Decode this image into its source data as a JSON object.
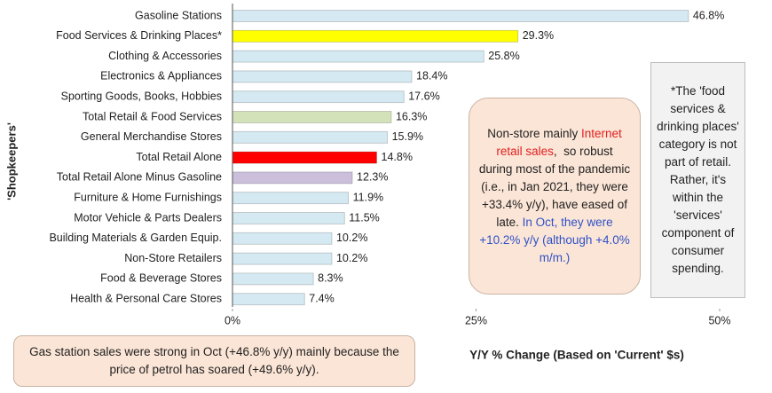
{
  "chart_data": {
    "type": "bar",
    "orientation": "horizontal",
    "categories": [
      "Gasoline Stations",
      "Food Services & Drinking Places*",
      "Clothing & Accessories",
      "Electronics & Appliances",
      "Sporting Goods, Books, Hobbies",
      "Total Retail & Food Services",
      "General Merchandise Stores",
      "Total Retail Alone",
      "Total Retail Alone Minus Gasoline",
      "Furniture & Home Furnishings",
      "Motor Vehicle & Parts Dealers",
      "Building Materials & Garden Equip.",
      "Non-Store Retailers",
      "Food & Beverage Stores",
      "Health & Personal Care Stores"
    ],
    "values": [
      46.8,
      29.3,
      25.8,
      18.4,
      17.6,
      16.3,
      15.9,
      14.8,
      12.3,
      11.9,
      11.5,
      10.2,
      10.2,
      8.3,
      7.4
    ],
    "value_labels": [
      "46.8%",
      "29.3%",
      "25.8%",
      "18.4%",
      "17.6%",
      "16.3%",
      "15.9%",
      "14.8%",
      "12.3%",
      "11.9%",
      "11.5%",
      "10.2%",
      "10.2%",
      "8.3%",
      "7.4%"
    ],
    "colors": [
      "#d5e9f2",
      "#ffff00",
      "#d5e9f2",
      "#d5e9f2",
      "#d5e9f2",
      "#d3e2b9",
      "#d5e9f2",
      "#ff0000",
      "#cbbfdc",
      "#d5e9f2",
      "#d5e9f2",
      "#d5e9f2",
      "#d5e9f2",
      "#d5e9f2",
      "#d5e9f2"
    ],
    "xlim": [
      0,
      50
    ],
    "xticks": [
      {
        "value": 0,
        "label": "0%"
      },
      {
        "value": 25,
        "label": "25%"
      },
      {
        "value": 50,
        "label": "50%"
      }
    ],
    "xlabel": "Y/Y % Change (Based  on 'Current' $s)",
    "ylabel": "'Shopkeepers'",
    "annotations": [
      {
        "segments": [
          {
            "text": "Non-store mainly ",
            "color": "#222222"
          },
          {
            "text": "Internet retail sales",
            "color": "#e02020"
          },
          {
            "text": ",  so robust during most of the pandemic (i.e., in Jan 2021, they were +33.4% y/y), have eased of late. ",
            "color": "#222222"
          },
          {
            "text": "In Oct, they were +10.2% y/y (although +4.0% m/m.)",
            "color": "#2f52c8"
          }
        ]
      },
      {
        "segments": [
          {
            "text": "*The 'food services & drinking places' category is not part of retail. Rather, it's within the 'services' component of consumer spending.",
            "color": "#222222"
          }
        ]
      },
      {
        "segments": [
          {
            "text": "Gas station sales were strong in Oct (+46.8% y/y) mainly because the price of petrol has soared (+49.6% y/y).",
            "color": "#222222"
          }
        ]
      }
    ]
  }
}
